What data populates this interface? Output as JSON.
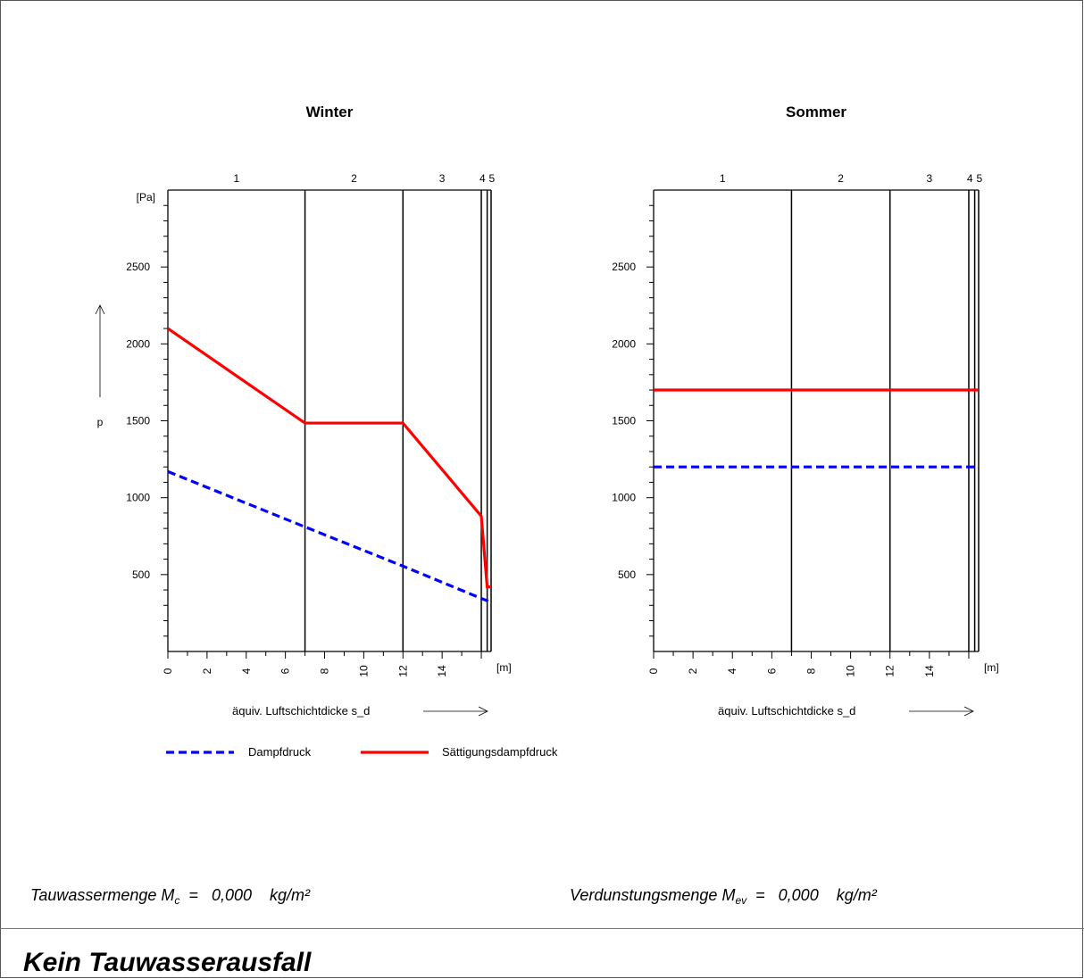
{
  "chart_data": [
    {
      "type": "line",
      "title": "Winter",
      "xlabel": "äquiv. Luftschichtdicke s_d",
      "xunit": "[m]",
      "ylabel": "p",
      "yunit": "[Pa]",
      "xlim": [
        0,
        16.5
      ],
      "ylim": [
        0,
        3000
      ],
      "xticks": [
        0,
        2,
        4,
        6,
        8,
        10,
        12,
        14
      ],
      "yticks": [
        500,
        1000,
        1500,
        2000,
        2500
      ],
      "layer_boundaries": [
        0,
        7,
        12,
        16,
        16.3,
        16.5
      ],
      "layer_labels": [
        "1",
        "2",
        "3",
        "4",
        "5"
      ],
      "series": [
        {
          "name": "Dampfdruck",
          "color": "#0000ff",
          "dash": true,
          "x": [
            0,
            7,
            12,
            16,
            16.3,
            16.5
          ],
          "y": [
            1170,
            810,
            555,
            345,
            330,
            320
          ]
        },
        {
          "name": "Sättigungsdampfdruck",
          "color": "#ff0000",
          "dash": false,
          "x": [
            0,
            7,
            12,
            16,
            16.3,
            16.5
          ],
          "y": [
            2100,
            1485,
            1485,
            880,
            420,
            420
          ]
        }
      ]
    },
    {
      "type": "line",
      "title": "Sommer",
      "xlabel": "äquiv. Luftschichtdicke s_d",
      "xunit": "[m]",
      "ylabel": "",
      "yunit": "",
      "xlim": [
        0,
        16.5
      ],
      "ylim": [
        0,
        3000
      ],
      "xticks": [
        0,
        2,
        4,
        6,
        8,
        10,
        12,
        14
      ],
      "yticks": [
        500,
        1000,
        1500,
        2000,
        2500
      ],
      "layer_boundaries": [
        0,
        7,
        12,
        16,
        16.3,
        16.5
      ],
      "layer_labels": [
        "1",
        "2",
        "3",
        "4",
        "5"
      ],
      "series": [
        {
          "name": "Dampfdruck",
          "color": "#0000ff",
          "dash": true,
          "x": [
            0,
            16.5
          ],
          "y": [
            1200,
            1200
          ]
        },
        {
          "name": "Sättigungsdampfdruck",
          "color": "#ff0000",
          "dash": false,
          "x": [
            0,
            16.5
          ],
          "y": [
            1700,
            1700
          ]
        }
      ]
    }
  ],
  "legend": {
    "items": [
      {
        "name": "Dampfdruck",
        "color": "#0000ff",
        "dash": true
      },
      {
        "name": "Sättigungsdampfdruck",
        "color": "#ff0000",
        "dash": false
      }
    ]
  },
  "results": {
    "condensate_label": "Tauwassermenge M",
    "condensate_sub": "c",
    "condensate_rest": "  =   0,000    kg/m²",
    "evaporation_label": "Verdunstungsmenge M",
    "evaporation_sub": "ev",
    "evaporation_rest": "  =   0,000    kg/m²"
  },
  "status": "Kein Tauwasserausfall"
}
